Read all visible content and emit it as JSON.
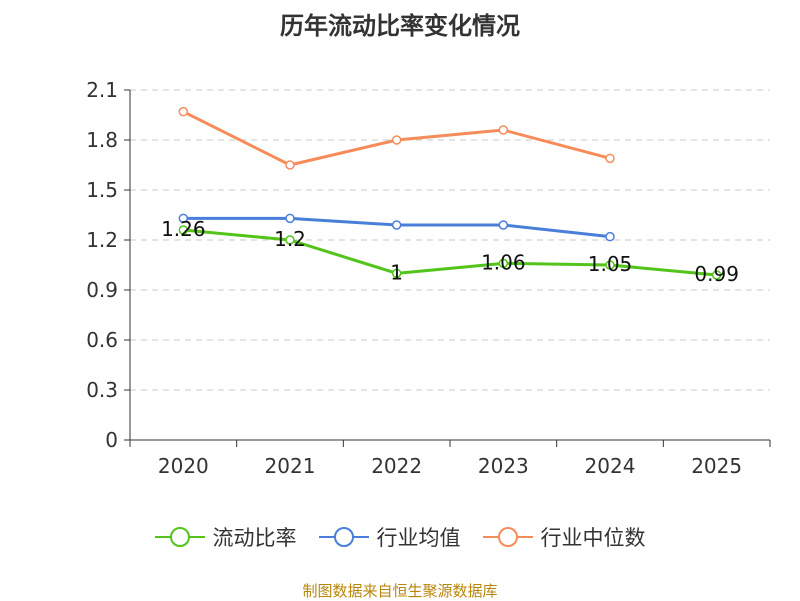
{
  "title": "历年流动比率变化情况",
  "source_note": "制图数据来自恒生聚源数据库",
  "colors": {
    "current_ratio": "#52c41a",
    "industry_mean": "#4a7fd9",
    "industry_median": "#f58c5a",
    "grid": "#c8c8c8",
    "axis": "#333333"
  },
  "chart_data": {
    "type": "line",
    "title": "历年流动比率变化情况",
    "categories": [
      "2020",
      "2021",
      "2022",
      "2023",
      "2024",
      "2025"
    ],
    "y_ticks": [
      "0",
      "0.3",
      "0.6",
      "0.9",
      "1.2",
      "1.5",
      "1.8",
      "2.1"
    ],
    "ylim": [
      0,
      2.1
    ],
    "grid": true,
    "legend_position": "bottom",
    "series": [
      {
        "name": "流动比率",
        "key": "current_ratio",
        "values": [
          1.26,
          1.2,
          1,
          1.06,
          1.05,
          0.99
        ],
        "labels": [
          "1.26",
          "1.2",
          "1",
          "1.06",
          "1.05",
          "0.99"
        ]
      },
      {
        "name": "行业均值",
        "key": "industry_mean",
        "values": [
          1.33,
          1.33,
          1.29,
          1.29,
          1.22,
          null
        ],
        "labels": []
      },
      {
        "name": "行业中位数",
        "key": "industry_median",
        "values": [
          1.97,
          1.65,
          1.8,
          1.86,
          1.69,
          null
        ],
        "labels": []
      }
    ]
  }
}
